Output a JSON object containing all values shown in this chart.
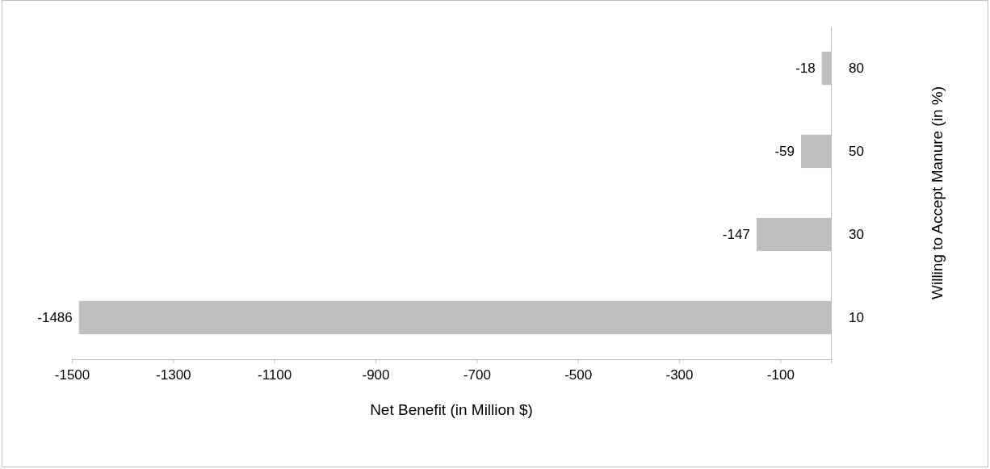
{
  "chart_data": {
    "type": "bar",
    "orientation": "horizontal",
    "xlabel": "Net Benefit (in Million $)",
    "ylabel": "Willing to Accept Manure (in %)",
    "categories": [
      "80",
      "50",
      "30",
      "10"
    ],
    "values": [
      -18,
      -59,
      -147,
      -1486
    ],
    "color": "#bfbfbf",
    "xlim": [
      -1500,
      0
    ],
    "xticks": [
      -1500,
      -1300,
      -1100,
      -900,
      -700,
      -500,
      -300,
      -100
    ],
    "data_labels": true,
    "grid": false
  }
}
